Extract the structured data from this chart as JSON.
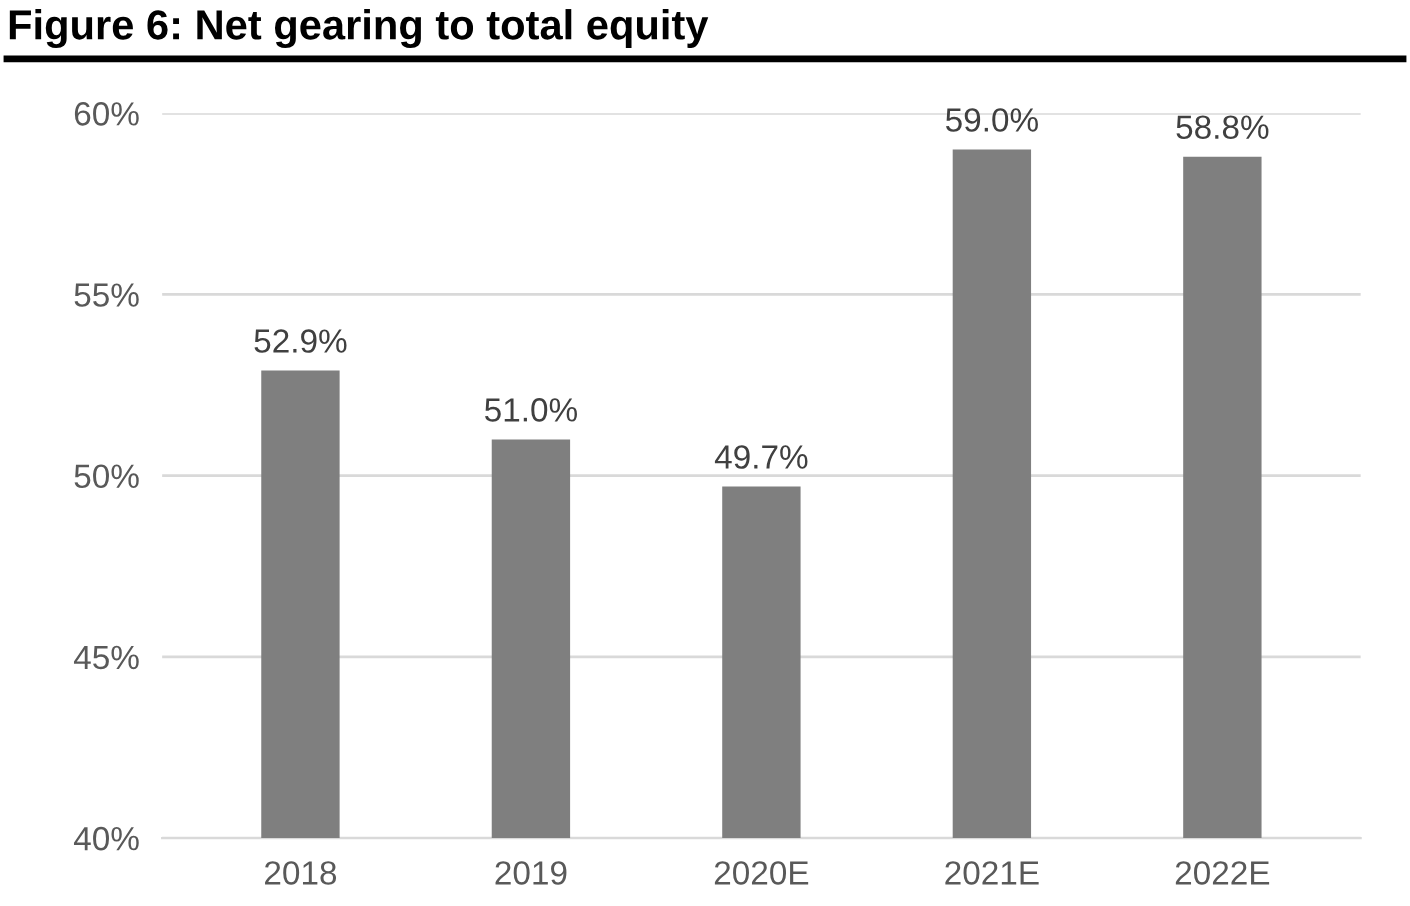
{
  "chart_data": {
    "type": "bar",
    "title": "Figure 6: Net gearing to total equity",
    "categories": [
      "2018",
      "2019",
      "2020E",
      "2021E",
      "2022E"
    ],
    "values": [
      52.9,
      51.0,
      49.7,
      59.0,
      58.8
    ],
    "value_labels": [
      "52.9%",
      "51.0%",
      "49.7%",
      "59.0%",
      "58.8%"
    ],
    "color": "#7f7f7f",
    "ylim": [
      40,
      60
    ],
    "yticks": [
      {
        "value": 40,
        "label": "40%"
      },
      {
        "value": 45,
        "label": "45%"
      },
      {
        "value": 50,
        "label": "50%"
      },
      {
        "value": 55,
        "label": "55%"
      },
      {
        "value": 60,
        "label": "60%"
      }
    ],
    "grid": "y"
  }
}
